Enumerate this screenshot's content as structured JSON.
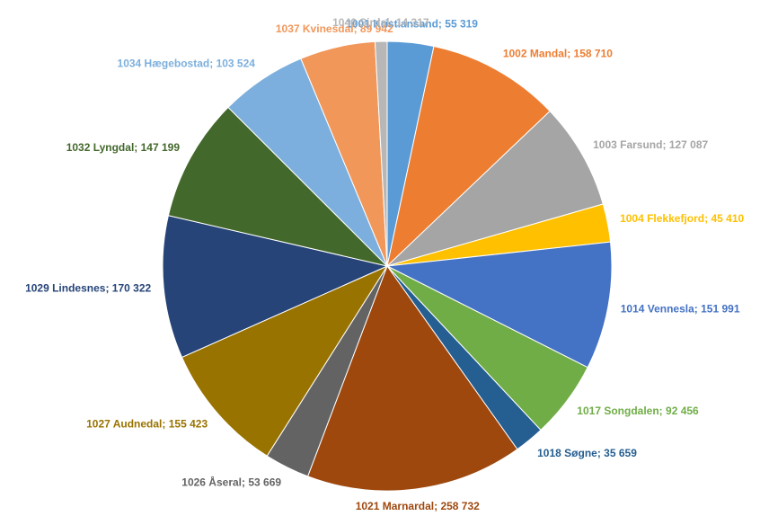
{
  "chart_data": {
    "type": "pie",
    "categories": [
      "1001 Kristiansand",
      "1002 Mandal",
      "1003 Farsund",
      "1004 Flekkefjord",
      "1014 Vennesla",
      "1017 Songdalen",
      "1018 Søgne",
      "1021 Marnardal",
      "1026 Åseral",
      "1027 Audnedal",
      "1029 Lindesnes",
      "1032 Lyngdal",
      "1034 Hægebostad",
      "1037 Kvinesdal",
      "1046 Sirdal"
    ],
    "values": [
      55319,
      158710,
      127087,
      45410,
      151991,
      92456,
      35659,
      258732,
      53669,
      155423,
      170322,
      147199,
      103524,
      89942,
      14317
    ],
    "value_labels": [
      "55 319",
      "158 710",
      "127 087",
      "45 410",
      "151 991",
      "92 456",
      "35 659",
      "258 732",
      "53 669",
      "155 423",
      "170 322",
      "147 199",
      "103 524",
      "89 942",
      "14 317"
    ],
    "label_separator": "; ",
    "colors": [
      "#5b9bd5",
      "#ed7d31",
      "#a5a5a5",
      "#ffc000",
      "#4472c4",
      "#70ad47",
      "#255e91",
      "#9e480e",
      "#636363",
      "#997300",
      "#264478",
      "#43682b",
      "#7cafdd",
      "#f1975a",
      "#b7b7b7"
    ]
  }
}
